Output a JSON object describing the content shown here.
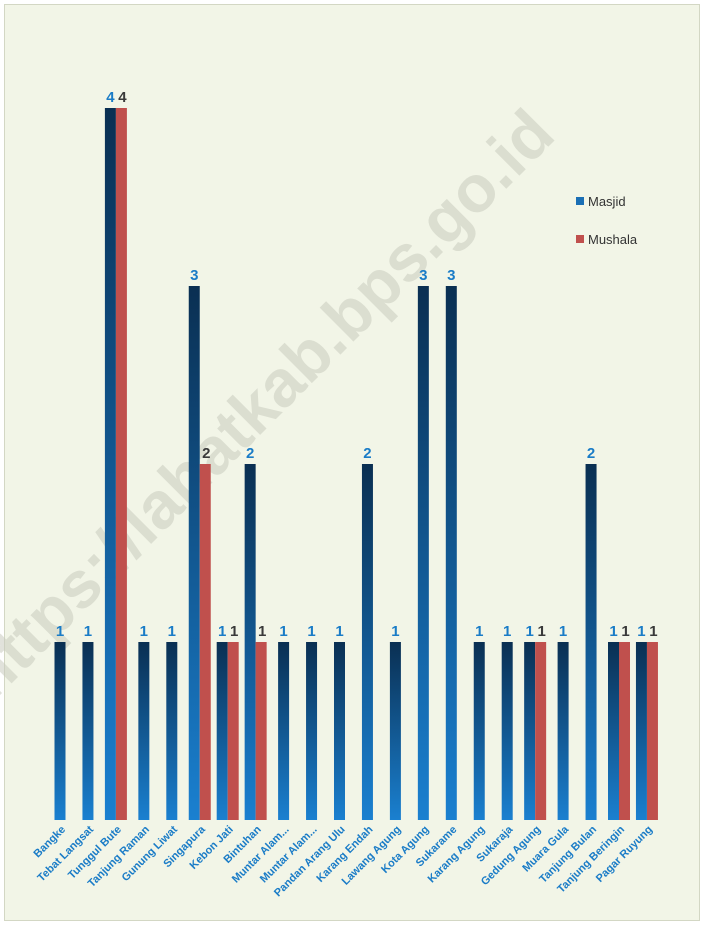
{
  "watermark": "https://lahatkab.bps.go.id",
  "chart_data": {
    "type": "bar",
    "categories": [
      "Bangke",
      "Tebat Langsat",
      "Tunggul Bute",
      "Tanjung Raman",
      "Gunung Liwat",
      "Singapura",
      "Kebon Jati",
      "Bintuhan",
      "Muntar Alam...",
      "Muntar Alam...",
      "Pandan Arang Ulu",
      "Karang Endah",
      "Lawang Agung",
      "Kota Agung",
      "Sukarame",
      "Karang Agung",
      "Sukaraja",
      "Gedung Agung",
      "Muara Gula",
      "Tanjung Bulan",
      "Tanjung Beringin",
      "Pagar Ruyung"
    ],
    "series": [
      {
        "name": "Masjid",
        "values": [
          1,
          1,
          4,
          1,
          1,
          3,
          1,
          2,
          1,
          1,
          1,
          2,
          1,
          3,
          3,
          1,
          1,
          1,
          1,
          2,
          1,
          1
        ]
      },
      {
        "name": "Mushala",
        "values": [
          null,
          null,
          4,
          null,
          null,
          2,
          1,
          1,
          null,
          null,
          null,
          null,
          null,
          null,
          null,
          null,
          null,
          1,
          null,
          null,
          1,
          1
        ]
      }
    ],
    "ylim": [
      0,
      4
    ],
    "grid": false,
    "legend": "top-right",
    "colors": {
      "Masjid": "#1a6fb5",
      "Mushala": "#c0504d",
      "masjid_label": "#1a7cc7",
      "mushala_label": "#3a3a3a"
    }
  }
}
